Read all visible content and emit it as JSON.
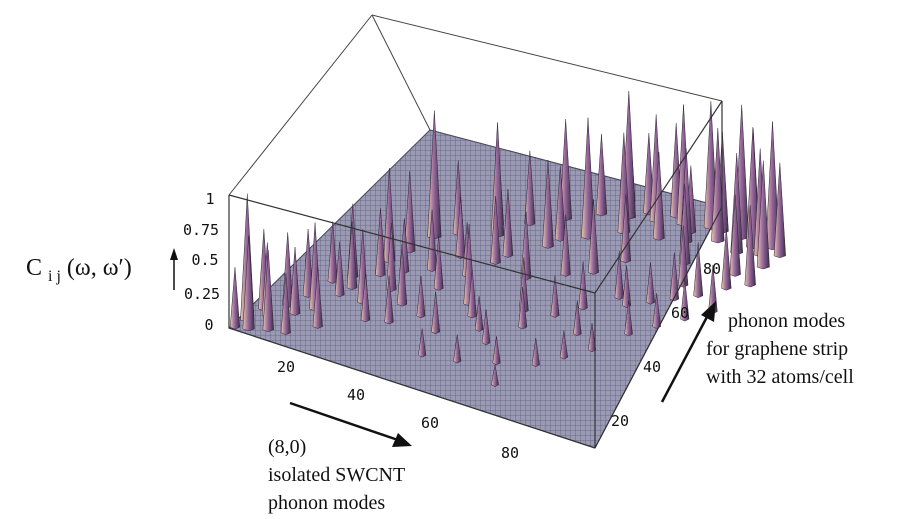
{
  "chart_data": {
    "type": "surface3d",
    "z_label": {
      "main": "C",
      "sub": "i j",
      "args": "(ω, ω′)"
    },
    "x_axis": {
      "ticks": [
        "20",
        "40",
        "60",
        "80"
      ],
      "label_lines": [
        "(8,0)",
        "isolated SWCNT",
        "phonon modes"
      ]
    },
    "y_axis": {
      "ticks": [
        "20",
        "40",
        "60",
        "80"
      ],
      "label_lines": [
        "phonon modes",
        "for graphene strip",
        "with 32 atoms/cell"
      ]
    },
    "z_axis": {
      "ticks": [
        "0",
        "0.25",
        "0.5",
        "0.75",
        "1"
      ],
      "range": [
        0,
        1
      ]
    },
    "x_range": [
      1,
      96
    ],
    "y_range": [
      1,
      96
    ],
    "surface_color": "#8a8aa6",
    "peak_color": "#9a6a9e",
    "highlight_color": "#e8c9a8",
    "peaks": [
      {
        "i": 3,
        "j": 6,
        "v": 0.95
      },
      {
        "i": 5,
        "j": 3,
        "v": 0.7
      },
      {
        "i": 6,
        "j": 10,
        "v": 0.55
      },
      {
        "i": 9,
        "j": 5,
        "v": 0.6
      },
      {
        "i": 11,
        "j": 14,
        "v": 0.5
      },
      {
        "i": 13,
        "j": 6,
        "v": 0.45
      },
      {
        "i": 15,
        "j": 34,
        "v": 0.55
      },
      {
        "i": 17,
        "j": 30,
        "v": 0.5
      },
      {
        "i": 19,
        "j": 44,
        "v": 0.7
      },
      {
        "i": 21,
        "j": 50,
        "v": 0.6
      },
      {
        "i": 23,
        "j": 58,
        "v": 0.95
      },
      {
        "i": 25,
        "j": 34,
        "v": 0.5
      },
      {
        "i": 27,
        "j": 62,
        "v": 0.55
      },
      {
        "i": 29,
        "j": 46,
        "v": 0.45
      },
      {
        "i": 31,
        "j": 22,
        "v": 0.35
      },
      {
        "i": 33,
        "j": 70,
        "v": 0.6
      },
      {
        "i": 35,
        "j": 66,
        "v": 0.85
      },
      {
        "i": 37,
        "j": 48,
        "v": 0.4
      },
      {
        "i": 39,
        "j": 74,
        "v": 0.55
      },
      {
        "i": 41,
        "j": 60,
        "v": 0.5
      },
      {
        "i": 43,
        "j": 38,
        "v": 0.6
      },
      {
        "i": 45,
        "j": 80,
        "v": 0.75
      },
      {
        "i": 47,
        "j": 68,
        "v": 0.65
      },
      {
        "i": 49,
        "j": 54,
        "v": 0.5
      },
      {
        "i": 51,
        "j": 86,
        "v": 0.6
      },
      {
        "i": 53,
        "j": 76,
        "v": 0.9
      },
      {
        "i": 55,
        "j": 42,
        "v": 0.4
      },
      {
        "i": 57,
        "j": 88,
        "v": 0.95
      },
      {
        "i": 59,
        "j": 82,
        "v": 0.75
      },
      {
        "i": 61,
        "j": 64,
        "v": 0.55
      },
      {
        "i": 63,
        "j": 90,
        "v": 0.8
      },
      {
        "i": 65,
        "j": 72,
        "v": 0.5
      },
      {
        "i": 67,
        "j": 84,
        "v": 0.65
      },
      {
        "i": 69,
        "j": 92,
        "v": 0.9
      },
      {
        "i": 71,
        "j": 58,
        "v": 0.35
      },
      {
        "i": 73,
        "j": 86,
        "v": 0.7
      },
      {
        "i": 75,
        "j": 94,
        "v": 0.95
      },
      {
        "i": 77,
        "j": 78,
        "v": 0.6
      },
      {
        "i": 79,
        "j": 90,
        "v": 0.85
      },
      {
        "i": 81,
        "j": 70,
        "v": 0.45
      },
      {
        "i": 83,
        "j": 94,
        "v": 1.0
      },
      {
        "i": 85,
        "j": 88,
        "v": 0.75
      },
      {
        "i": 87,
        "j": 92,
        "v": 0.9
      },
      {
        "i": 89,
        "j": 80,
        "v": 0.6
      },
      {
        "i": 91,
        "j": 94,
        "v": 0.95
      },
      {
        "i": 93,
        "j": 86,
        "v": 0.8
      },
      {
        "i": 94,
        "j": 92,
        "v": 0.7
      },
      {
        "i": 10,
        "j": 22,
        "v": 0.5
      },
      {
        "i": 14,
        "j": 18,
        "v": 0.65
      },
      {
        "i": 18,
        "j": 12,
        "v": 0.45
      },
      {
        "i": 22,
        "j": 26,
        "v": 0.55
      },
      {
        "i": 26,
        "j": 20,
        "v": 0.35
      },
      {
        "i": 30,
        "j": 30,
        "v": 0.45
      },
      {
        "i": 34,
        "j": 40,
        "v": 0.4
      },
      {
        "i": 36,
        "j": 28,
        "v": 0.3
      },
      {
        "i": 42,
        "j": 24,
        "v": 0.3
      },
      {
        "i": 46,
        "j": 34,
        "v": 0.35
      },
      {
        "i": 50,
        "j": 30,
        "v": 0.25
      },
      {
        "i": 54,
        "j": 26,
        "v": 0.25
      },
      {
        "i": 58,
        "j": 36,
        "v": 0.3
      },
      {
        "i": 62,
        "j": 44,
        "v": 0.3
      },
      {
        "i": 66,
        "j": 50,
        "v": 0.35
      },
      {
        "i": 70,
        "j": 40,
        "v": 0.25
      },
      {
        "i": 74,
        "j": 56,
        "v": 0.3
      },
      {
        "i": 78,
        "j": 60,
        "v": 0.3
      },
      {
        "i": 82,
        "j": 64,
        "v": 0.35
      },
      {
        "i": 86,
        "j": 68,
        "v": 0.4
      },
      {
        "i": 90,
        "j": 74,
        "v": 0.45
      },
      {
        "i": 44,
        "j": 14,
        "v": 0.2
      },
      {
        "i": 52,
        "j": 16,
        "v": 0.2
      },
      {
        "i": 60,
        "j": 20,
        "v": 0.2
      },
      {
        "i": 64,
        "j": 12,
        "v": 0.15
      },
      {
        "i": 68,
        "j": 24,
        "v": 0.2
      },
      {
        "i": 72,
        "j": 30,
        "v": 0.2
      },
      {
        "i": 76,
        "j": 36,
        "v": 0.2
      },
      {
        "i": 80,
        "j": 46,
        "v": 0.25
      },
      {
        "i": 84,
        "j": 52,
        "v": 0.25
      },
      {
        "i": 88,
        "j": 58,
        "v": 0.3
      },
      {
        "i": 92,
        "j": 64,
        "v": 0.35
      },
      {
        "i": 48,
        "j": 72,
        "v": 0.55
      },
      {
        "i": 56,
        "j": 60,
        "v": 0.45
      },
      {
        "i": 40,
        "j": 56,
        "v": 0.5
      },
      {
        "i": 32,
        "j": 54,
        "v": 0.45
      },
      {
        "i": 24,
        "j": 42,
        "v": 0.4
      },
      {
        "i": 20,
        "j": 38,
        "v": 0.5
      },
      {
        "i": 16,
        "j": 26,
        "v": 0.4
      },
      {
        "i": 12,
        "j": 30,
        "v": 0.45
      },
      {
        "i": 8,
        "j": 16,
        "v": 0.55
      },
      {
        "i": 4,
        "j": 12,
        "v": 0.6
      },
      {
        "i": 2,
        "j": 2,
        "v": 0.45
      },
      {
        "i": 66,
        "j": 94,
        "v": 0.7
      },
      {
        "i": 60,
        "j": 92,
        "v": 0.6
      },
      {
        "i": 54,
        "j": 94,
        "v": 0.55
      },
      {
        "i": 72,
        "j": 90,
        "v": 0.5
      },
      {
        "i": 78,
        "j": 94,
        "v": 0.75
      },
      {
        "i": 86,
        "j": 94,
        "v": 0.85
      },
      {
        "i": 90,
        "j": 90,
        "v": 0.8
      },
      {
        "i": 94,
        "j": 78,
        "v": 0.6
      }
    ]
  }
}
